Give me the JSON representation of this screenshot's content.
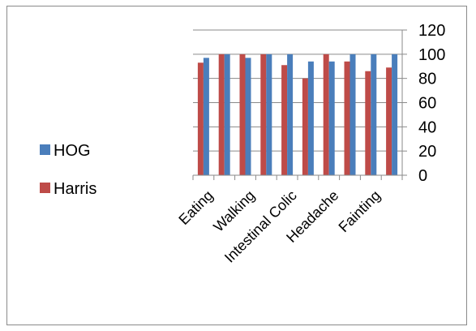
{
  "chart_data": {
    "type": "bar",
    "title": "",
    "xlabel": "",
    "ylabel": "",
    "categories": [
      "Eating",
      "",
      "Walking",
      "",
      "Intestinal Colic",
      "",
      "Headache",
      "",
      "Fainting",
      ""
    ],
    "series": [
      {
        "name": "HOG",
        "color": "#4a7ebb",
        "values": [
          97,
          100,
          97,
          100,
          100,
          94,
          94,
          100,
          100,
          100
        ]
      },
      {
        "name": "Harris",
        "color": "#be4b48",
        "values": [
          93,
          100,
          100,
          100,
          91,
          80,
          100,
          94,
          86,
          89
        ]
      }
    ],
    "ylim": [
      0,
      120
    ],
    "yticks": [
      0,
      20,
      40,
      60,
      80,
      100,
      120
    ],
    "y_axis_side": "right",
    "grid": true,
    "legend_position": "left"
  }
}
